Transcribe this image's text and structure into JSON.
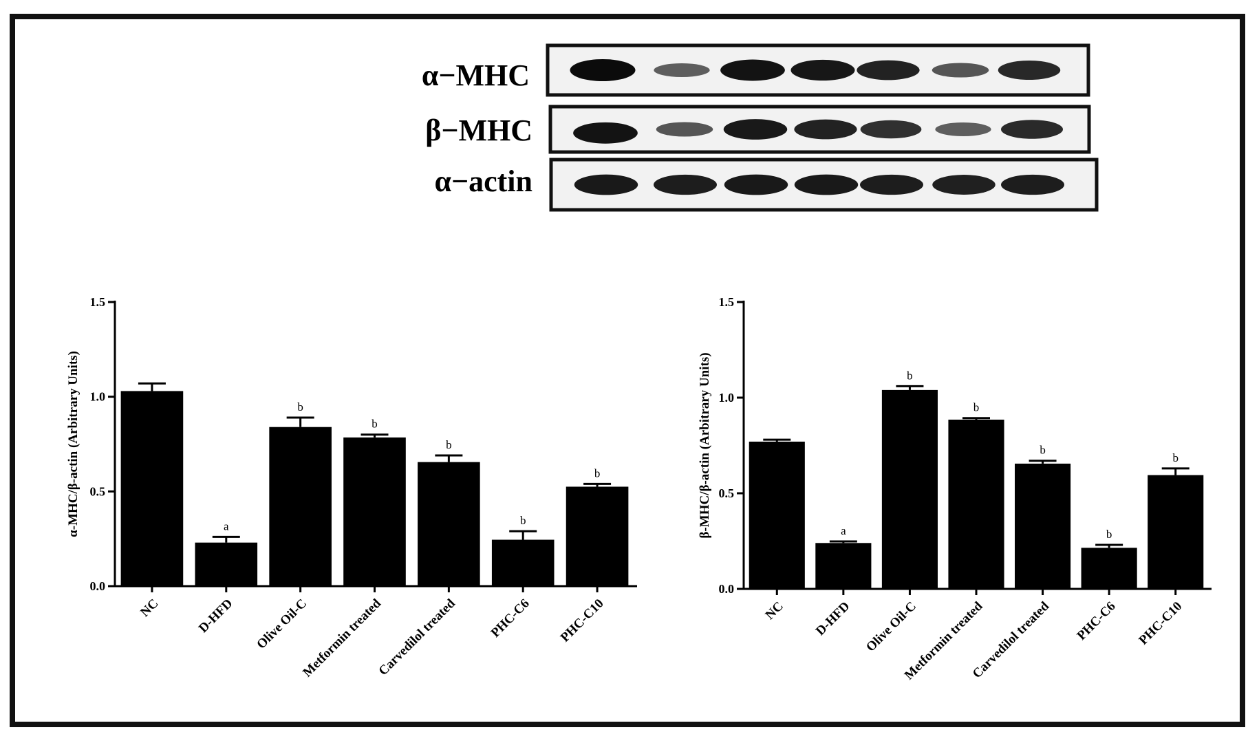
{
  "blot": {
    "rows": [
      {
        "label": "α−MHC",
        "intensity": [
          1.0,
          0.45,
          0.95,
          0.92,
          0.85,
          0.5,
          0.82
        ]
      },
      {
        "label": "β−MHC",
        "intensity": [
          0.95,
          0.5,
          0.9,
          0.85,
          0.75,
          0.45,
          0.8
        ]
      },
      {
        "label": "α−actin",
        "intensity": [
          0.9,
          0.88,
          0.9,
          0.9,
          0.88,
          0.86,
          0.88
        ]
      }
    ]
  },
  "chart_data": [
    {
      "type": "bar",
      "categories": [
        "NC",
        "D-HFD",
        "Olive Oil-C",
        "Metformin treated",
        "Carvedilol treated",
        "PHC-C6",
        "PHC-C10"
      ],
      "values": [
        1.03,
        0.23,
        0.84,
        0.785,
        0.655,
        0.245,
        0.525
      ],
      "errors": [
        0.04,
        0.03,
        0.05,
        0.015,
        0.035,
        0.045,
        0.015
      ],
      "annotations": [
        "",
        "a",
        "b",
        "b",
        "b",
        "b",
        "b"
      ],
      "ylabel": "α-MHC/β-actin (Arbitrary Units)",
      "ylim": [
        0,
        1.5
      ],
      "yticks": [
        "0.0",
        "0.5",
        "1.0",
        "1.5"
      ],
      "bar_color": "#000000"
    },
    {
      "type": "bar",
      "categories": [
        "NC",
        "D-HFD",
        "Olive Oil-C",
        "Metformin treated",
        "Carvedilol treated",
        "PHC-C6",
        "PHC-C10"
      ],
      "values": [
        0.77,
        0.24,
        1.04,
        0.885,
        0.655,
        0.215,
        0.595
      ],
      "errors": [
        0.01,
        0.008,
        0.02,
        0.008,
        0.015,
        0.015,
        0.035
      ],
      "annotations": [
        "",
        "a",
        "b",
        "b",
        "b",
        "b",
        "b"
      ],
      "ylabel": "β-MHC/β-actin (Arbitrary Units)",
      "ylim": [
        0,
        1.5
      ],
      "yticks": [
        "0.0",
        "0.5",
        "1.0",
        "1.5"
      ],
      "bar_color": "#000000"
    }
  ]
}
